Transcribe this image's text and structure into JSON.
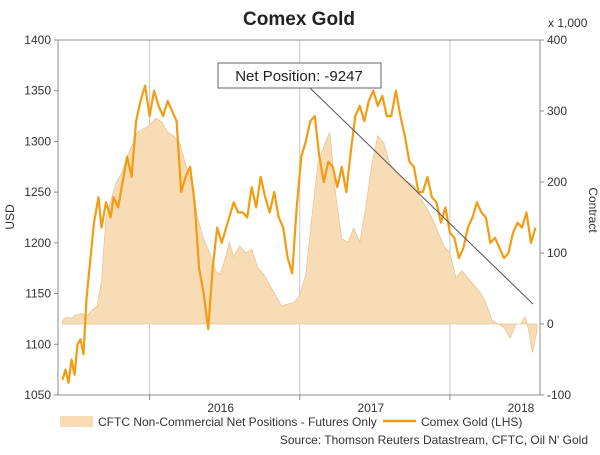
{
  "chart_data": {
    "type": "area+line",
    "title": "Comex Gold",
    "x_ticks": [
      "2016",
      "2017",
      "2018"
    ],
    "left_axis": {
      "label": "USD",
      "ylim": [
        1050,
        1400
      ],
      "ticks": [
        "1050",
        "1100",
        "1150",
        "1200",
        "1250",
        "1300",
        "1350",
        "1400"
      ]
    },
    "right_axis": {
      "label": "Contract",
      "multiplier": "x 1,000",
      "ylim": [
        -100,
        400
      ],
      "ticks": [
        "-100",
        "0",
        "100",
        "200",
        "300",
        "400"
      ]
    },
    "annotation": "Net Position: -9247",
    "source": "Source: Thomson Reuters Datastream, CFTC, Oil N' Gold",
    "legend_placement": "bottom",
    "grid": "vertical-only",
    "series": [
      {
        "name": "CFTC Non-Commercial Net Positions - Futures Only",
        "axis": "right",
        "kind": "area",
        "color": "#f8dcb5",
        "edge_color": "#e8c695",
        "x": [
          2015.42,
          2015.45,
          2015.48,
          2015.5,
          2015.55,
          2015.58,
          2015.62,
          2015.65,
          2015.68,
          2015.71,
          2015.75,
          2015.78,
          2015.82,
          2015.85,
          2015.88,
          2015.92,
          2015.96,
          2016.0,
          2016.04,
          2016.08,
          2016.12,
          2016.16,
          2016.2,
          2016.24,
          2016.28,
          2016.32,
          2016.36,
          2016.4,
          2016.44,
          2016.47,
          2016.5,
          2016.53,
          2016.56,
          2016.6,
          2016.64,
          2016.68,
          2016.72,
          2016.76,
          2016.8,
          2016.84,
          2016.88,
          2016.92,
          2016.96,
          2017.0,
          2017.04,
          2017.08,
          2017.12,
          2017.16,
          2017.2,
          2017.24,
          2017.28,
          2017.32,
          2017.36,
          2017.4,
          2017.44,
          2017.48,
          2017.52,
          2017.56,
          2017.6,
          2017.64,
          2017.68,
          2017.72,
          2017.76,
          2017.8,
          2017.84,
          2017.88,
          2017.92,
          2017.96,
          2018.0,
          2018.04,
          2018.08,
          2018.12,
          2018.16,
          2018.2,
          2018.24,
          2018.28,
          2018.32,
          2018.36,
          2018.4,
          2018.44,
          2018.47,
          2018.5,
          2018.52,
          2018.55,
          2018.58
        ],
        "values": [
          5,
          10,
          8,
          12,
          15,
          10,
          20,
          25,
          60,
          150,
          180,
          200,
          215,
          235,
          250,
          270,
          275,
          280,
          290,
          285,
          270,
          265,
          255,
          225,
          200,
          150,
          120,
          100,
          75,
          70,
          90,
          115,
          95,
          110,
          100,
          105,
          80,
          70,
          55,
          40,
          25,
          28,
          30,
          40,
          70,
          150,
          225,
          250,
          270,
          180,
          120,
          115,
          135,
          115,
          165,
          225,
          265,
          255,
          225,
          215,
          205,
          200,
          195,
          178,
          165,
          150,
          130,
          110,
          100,
          65,
          75,
          65,
          55,
          45,
          30,
          5,
          0,
          -5,
          -20,
          0,
          0,
          10,
          -5,
          -40,
          -10
        ]
      },
      {
        "name": "Comex Gold (LHS)",
        "axis": "left",
        "kind": "line",
        "color": "#f39c12",
        "x": [
          2015.42,
          2015.44,
          2015.46,
          2015.48,
          2015.5,
          2015.52,
          2015.54,
          2015.56,
          2015.58,
          2015.6,
          2015.63,
          2015.66,
          2015.68,
          2015.71,
          2015.74,
          2015.76,
          2015.79,
          2015.82,
          2015.85,
          2015.88,
          2015.91,
          2015.94,
          2015.97,
          2016.0,
          2016.03,
          2016.06,
          2016.09,
          2016.12,
          2016.15,
          2016.18,
          2016.21,
          2016.24,
          2016.27,
          2016.3,
          2016.33,
          2016.36,
          2016.39,
          2016.42,
          2016.45,
          2016.48,
          2016.5,
          2016.53,
          2016.56,
          2016.59,
          2016.62,
          2016.65,
          2016.68,
          2016.71,
          2016.74,
          2016.77,
          2016.8,
          2016.83,
          2016.86,
          2016.89,
          2016.92,
          2016.95,
          2016.98,
          2017.01,
          2017.04,
          2017.07,
          2017.1,
          2017.13,
          2017.16,
          2017.19,
          2017.22,
          2017.25,
          2017.28,
          2017.31,
          2017.34,
          2017.37,
          2017.4,
          2017.43,
          2017.46,
          2017.49,
          2017.52,
          2017.55,
          2017.58,
          2017.61,
          2017.64,
          2017.67,
          2017.7,
          2017.73,
          2017.76,
          2017.79,
          2017.82,
          2017.85,
          2017.88,
          2017.91,
          2017.94,
          2017.97,
          2018.0,
          2018.03,
          2018.06,
          2018.09,
          2018.12,
          2018.15,
          2018.18,
          2018.21,
          2018.24,
          2018.27,
          2018.3,
          2018.33,
          2018.36,
          2018.39,
          2018.42,
          2018.45,
          2018.48,
          2018.51,
          2018.54,
          2018.57
        ],
        "values": [
          1065,
          1075,
          1062,
          1085,
          1070,
          1100,
          1105,
          1090,
          1145,
          1175,
          1220,
          1245,
          1215,
          1240,
          1225,
          1245,
          1235,
          1260,
          1285,
          1265,
          1320,
          1340,
          1355,
          1325,
          1350,
          1335,
          1325,
          1340,
          1330,
          1320,
          1250,
          1265,
          1275,
          1240,
          1175,
          1150,
          1115,
          1175,
          1215,
          1200,
          1210,
          1225,
          1240,
          1230,
          1230,
          1225,
          1255,
          1235,
          1265,
          1245,
          1230,
          1250,
          1225,
          1215,
          1185,
          1170,
          1235,
          1285,
          1300,
          1320,
          1325,
          1285,
          1260,
          1280,
          1275,
          1255,
          1275,
          1250,
          1290,
          1325,
          1335,
          1320,
          1340,
          1350,
          1335,
          1345,
          1325,
          1325,
          1350,
          1325,
          1305,
          1280,
          1275,
          1250,
          1250,
          1265,
          1245,
          1240,
          1220,
          1235,
          1210,
          1205,
          1185,
          1195,
          1215,
          1225,
          1240,
          1230,
          1225,
          1200,
          1205,
          1195,
          1185,
          1190,
          1210,
          1220,
          1215,
          1230,
          1200,
          1215
        ]
      }
    ]
  }
}
